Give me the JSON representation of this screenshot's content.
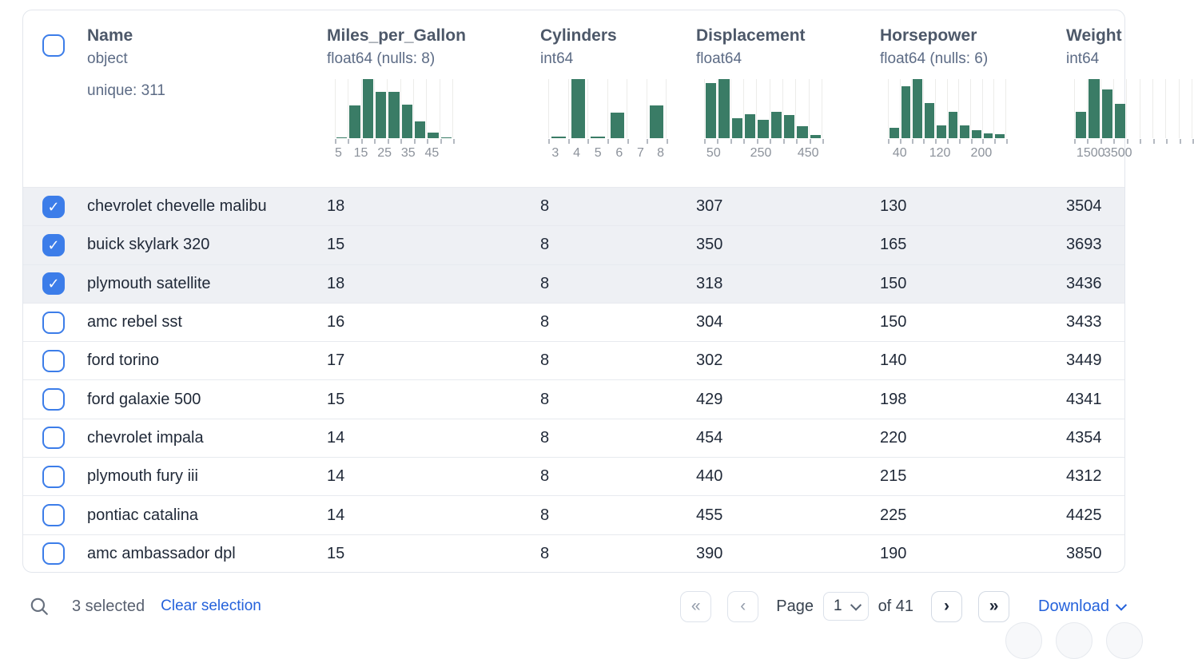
{
  "table": {
    "columns": [
      {
        "key": "name",
        "label": "Name",
        "dtype": "object",
        "meta": "unique: 311"
      },
      {
        "key": "miles_per_gallon",
        "label": "Miles_per_Gallon",
        "dtype": "float64 (nulls: 8)",
        "hist": {
          "type": "bar",
          "bar_color": "#3a7c66",
          "bars": [
            2,
            55,
            100,
            79,
            79,
            57,
            29,
            10,
            2
          ],
          "tick_labels": [
            {
              "text": "5",
              "pos": 0.03
            },
            {
              "text": "15",
              "pos": 0.22
            },
            {
              "text": "25",
              "pos": 0.42
            },
            {
              "text": "35",
              "pos": 0.62
            },
            {
              "text": "45",
              "pos": 0.82
            }
          ]
        }
      },
      {
        "key": "cylinders",
        "label": "Cylinders",
        "dtype": "int64",
        "hist": {
          "type": "bar",
          "bar_color": "#3a7c66",
          "bars": [
            3,
            100,
            3,
            43,
            0,
            55
          ],
          "tick_labels": [
            {
              "text": "3",
              "pos": 0.06
            },
            {
              "text": "4",
              "pos": 0.24
            },
            {
              "text": "5",
              "pos": 0.42
            },
            {
              "text": "6",
              "pos": 0.6
            },
            {
              "text": "7",
              "pos": 0.78
            },
            {
              "text": "8",
              "pos": 0.95
            }
          ]
        }
      },
      {
        "key": "displacement",
        "label": "Displacement",
        "dtype": "float64",
        "hist": {
          "type": "bar",
          "bar_color": "#3a7c66",
          "bars": [
            93,
            100,
            34,
            41,
            31,
            44,
            39,
            20,
            5
          ],
          "tick_labels": [
            {
              "text": "50",
              "pos": 0.08
            },
            {
              "text": "250",
              "pos": 0.48
            },
            {
              "text": "450",
              "pos": 0.88
            }
          ]
        }
      },
      {
        "key": "horsepower",
        "label": "Horsepower",
        "dtype": "float64 (nulls: 6)",
        "hist": {
          "type": "bar",
          "bar_color": "#3a7c66",
          "bars": [
            17,
            88,
            100,
            60,
            22,
            44,
            21,
            13,
            8,
            7
          ],
          "tick_labels": [
            {
              "text": "40",
              "pos": 0.1
            },
            {
              "text": "120",
              "pos": 0.44
            },
            {
              "text": "200",
              "pos": 0.79
            }
          ]
        }
      },
      {
        "key": "weight",
        "label": "Weight",
        "dtype": "int64",
        "hist": {
          "type": "bar",
          "bar_color": "#3a7c66",
          "bars": [
            45,
            100,
            82,
            58,
            0,
            0,
            0,
            0,
            0
          ],
          "tick_labels": [
            {
              "text": "1500",
              "pos": 0.14
            },
            {
              "text": "3500",
              "pos": 0.37
            }
          ]
        }
      }
    ],
    "rows": [
      {
        "selected": true,
        "cells": [
          "chevrolet chevelle malibu",
          "18",
          "8",
          "307",
          "130",
          "3504"
        ]
      },
      {
        "selected": true,
        "cells": [
          "buick skylark 320",
          "15",
          "8",
          "350",
          "165",
          "3693"
        ]
      },
      {
        "selected": true,
        "cells": [
          "plymouth satellite",
          "18",
          "8",
          "318",
          "150",
          "3436"
        ]
      },
      {
        "selected": false,
        "cells": [
          "amc rebel sst",
          "16",
          "8",
          "304",
          "150",
          "3433"
        ]
      },
      {
        "selected": false,
        "cells": [
          "ford torino",
          "17",
          "8",
          "302",
          "140",
          "3449"
        ]
      },
      {
        "selected": false,
        "cells": [
          "ford galaxie 500",
          "15",
          "8",
          "429",
          "198",
          "4341"
        ]
      },
      {
        "selected": false,
        "cells": [
          "chevrolet impala",
          "14",
          "8",
          "454",
          "220",
          "4354"
        ]
      },
      {
        "selected": false,
        "cells": [
          "plymouth fury iii",
          "14",
          "8",
          "440",
          "215",
          "4312"
        ]
      },
      {
        "selected": false,
        "cells": [
          "pontiac catalina",
          "14",
          "8",
          "455",
          "225",
          "4425"
        ]
      },
      {
        "selected": false,
        "cells": [
          "amc ambassador dpl",
          "15",
          "8",
          "390",
          "190",
          "3850"
        ]
      }
    ]
  },
  "footer": {
    "selected_count": "3 selected",
    "clear_label": "Clear selection",
    "page_label": "Page",
    "page_value": "1",
    "of_label": "of 41",
    "download_label": "Download",
    "icons": {
      "first": "«",
      "prev": "‹",
      "next": "›",
      "last": "»"
    }
  },
  "colors": {
    "accent_blue": "#3c7de9",
    "link_blue": "#2562db",
    "hist_green": "#3a7c66",
    "selected_row_bg": "#eef0f4",
    "header_text": "#4d5869",
    "subtext": "#5c6b85",
    "row_text": "#1f2837"
  }
}
